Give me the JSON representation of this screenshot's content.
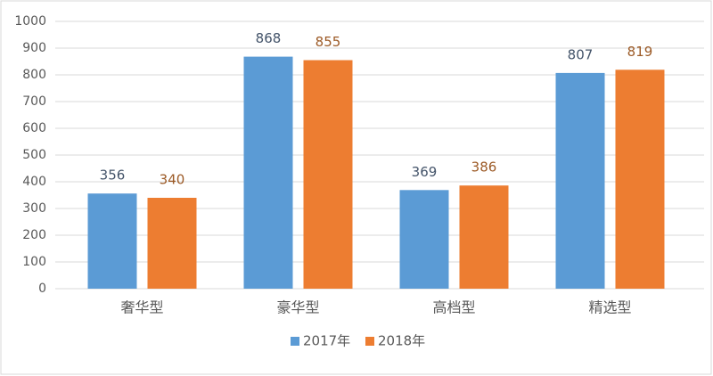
{
  "chart_data": {
    "type": "bar",
    "categories": [
      "奢华型",
      "豪华型",
      "高档型",
      "精选型"
    ],
    "series": [
      {
        "name": "2017年",
        "color": "#5b9bd5",
        "values": [
          356,
          868,
          369,
          807
        ]
      },
      {
        "name": "2018年",
        "color": "#ed7d31",
        "values": [
          340,
          855,
          386,
          819
        ]
      }
    ],
    "ylim": [
      0,
      1000
    ],
    "yticks": [
      0,
      100,
      200,
      300,
      400,
      500,
      600,
      700,
      800,
      900,
      1000
    ],
    "grid": true,
    "legend": "bottom"
  }
}
